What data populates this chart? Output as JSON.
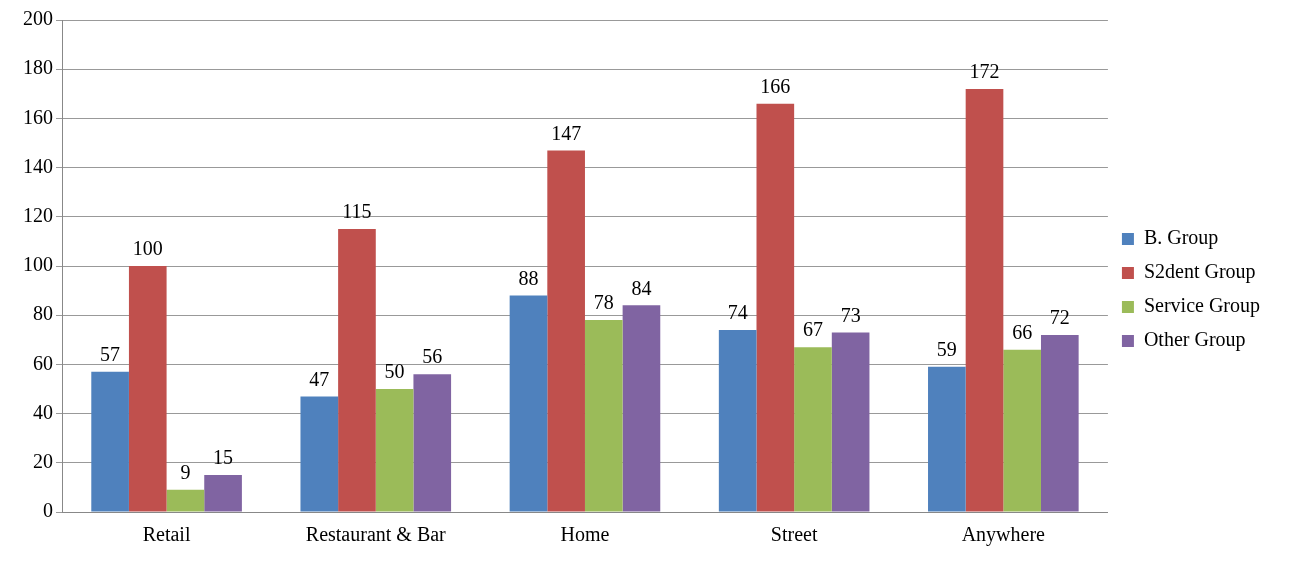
{
  "chart_data": {
    "type": "bar",
    "categories": [
      "Retail",
      "Restaurant & Bar",
      "Home",
      "Street",
      "Anywhere"
    ],
    "series": [
      {
        "name": "B. Group",
        "color": "#4f81bd",
        "values": [
          57,
          47,
          88,
          74,
          59
        ]
      },
      {
        "name": "S2dent Group",
        "color": "#c0504d",
        "values": [
          100,
          115,
          147,
          166,
          172
        ]
      },
      {
        "name": "Service Group",
        "color": "#9bbb59",
        "values": [
          9,
          50,
          78,
          67,
          66
        ]
      },
      {
        "name": "Other Group",
        "color": "#8064a2",
        "values": [
          15,
          56,
          84,
          73,
          72
        ]
      }
    ],
    "ylim": [
      0,
      200
    ],
    "yticks": [
      0,
      20,
      40,
      60,
      80,
      100,
      120,
      140,
      160,
      180,
      200
    ],
    "grid": "y",
    "legend": "right",
    "data_labels": true
  }
}
